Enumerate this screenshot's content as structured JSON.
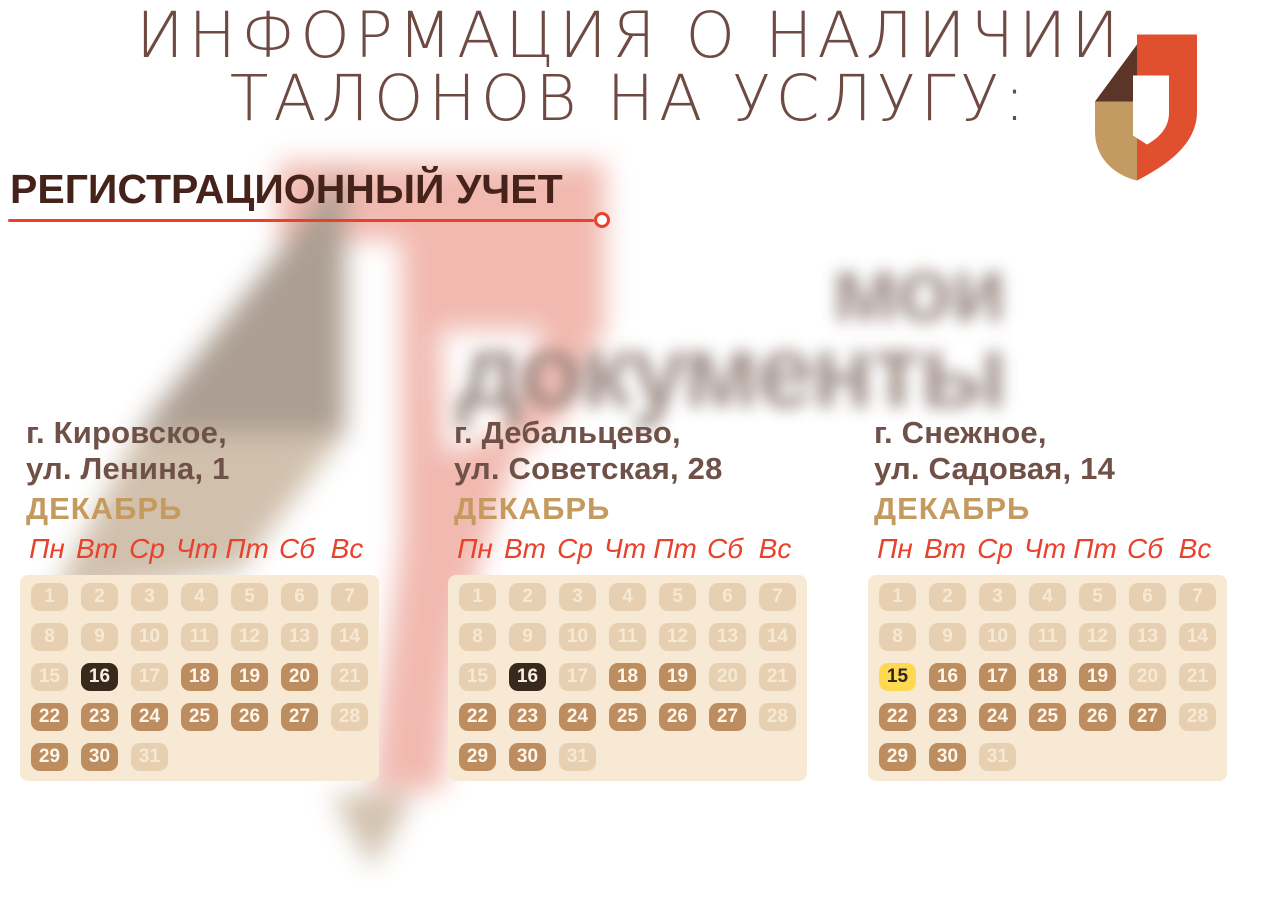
{
  "poster": {
    "title_line1": "ИНФОРМАЦИЯ О НАЛИЧИИ",
    "title_line2": "ТАЛОНОВ НА УСЛУГУ:",
    "section_heading": "РЕГИСТРАЦИОННЫЙ УЧЕТ",
    "watermark": {
      "line1": "мои",
      "line2": "документы"
    }
  },
  "calendar_common": {
    "month_label": "ДЕКАБРЬ",
    "weekdays": [
      "Пн",
      "Вт",
      "Ср",
      "Чт",
      "Пт",
      "Сб",
      "Вс"
    ],
    "days_in_month": 31
  },
  "calendars": [
    {
      "city": "г. Кировское,",
      "address": "ул. Ленина, 1",
      "available_days": [
        18,
        19,
        20,
        22,
        23,
        24,
        25,
        26,
        27,
        29,
        30
      ],
      "dark_day": 16,
      "yellow_day": null
    },
    {
      "city": "г. Дебальцево,",
      "address": "ул. Советская, 28",
      "available_days": [
        18,
        19,
        22,
        23,
        24,
        25,
        26,
        27,
        29,
        30
      ],
      "dark_day": 16,
      "yellow_day": null
    },
    {
      "city": "г. Снежное,",
      "address": "ул. Садовая, 14",
      "available_days": [
        16,
        17,
        18,
        19,
        22,
        23,
        24,
        25,
        26,
        27,
        29,
        30
      ],
      "dark_day": null,
      "yellow_day": 15
    }
  ],
  "colors": {
    "title_text": "#6e4a42",
    "heading_text": "#45231a",
    "accent_red": "#e8412c",
    "city_text": "#6f5148",
    "month_gold": "#c59a5f",
    "panel_bg": "#f7e9d4",
    "day_unavailable_bg": "#e7d0b2",
    "day_unavailable_text": "#f6e9d4",
    "day_available_bg": "#bd8d5f",
    "day_available_text": "#fdf6ec",
    "day_dark_bg": "#39291d",
    "day_yellow_bg": "#fcd951",
    "day_yellow_text": "#332619",
    "logo_brown": "#5b3527",
    "logo_tan": "#c49a63",
    "logo_red": "#e1502e",
    "watermark_grey": "#a59689",
    "watermark_tan": "#cdbba6",
    "watermark_pink": "#f0b4aa",
    "watermark_text": "#8e7b74"
  }
}
